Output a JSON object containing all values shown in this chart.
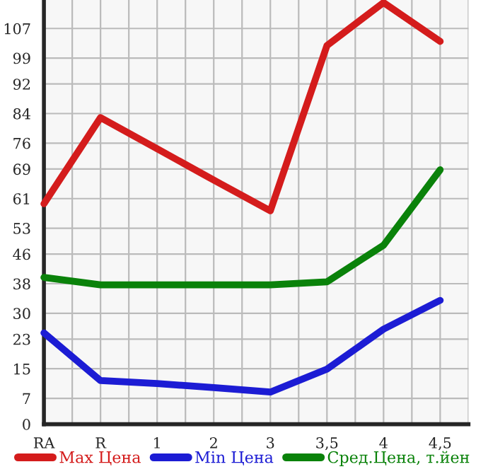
{
  "chart_data": {
    "type": "line",
    "categories": [
      "RA",
      "R",
      "1",
      "2",
      "3",
      "3,5",
      "4",
      "4,5"
    ],
    "series": [
      {
        "name": "Max Цена",
        "color": "#d41c1c",
        "values": [
          59.6,
          82.9,
          74.5,
          66,
          57.7,
          102.4,
          114,
          103.5
        ]
      },
      {
        "name": "Min Цена",
        "color": "#1c1cd4",
        "values": [
          24.7,
          11.8,
          11,
          9.9,
          8.7,
          14.9,
          25.7,
          33.5
        ]
      },
      {
        "name": "Сред.Цена, т.йен",
        "color": "#0a820a",
        "values": [
          39.7,
          37.7,
          37.7,
          37.7,
          37.7,
          38.5,
          48.4,
          68.8
        ]
      }
    ],
    "ylim": [
      0,
      114.7
    ],
    "yticks": [
      0,
      7,
      15,
      23,
      30,
      38,
      46,
      53,
      61,
      69,
      76,
      84,
      92,
      99,
      107
    ],
    "grid": true,
    "legend": "bottom",
    "marker": "none",
    "line_style": "solid"
  }
}
